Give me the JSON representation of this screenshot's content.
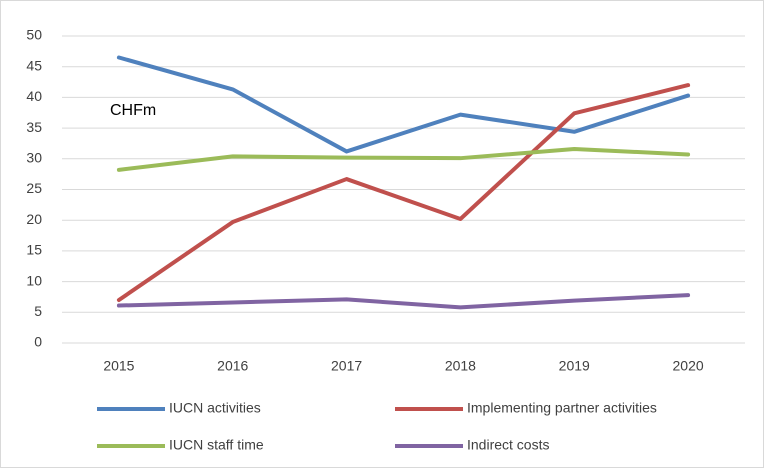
{
  "chart_data": {
    "type": "line",
    "annotation": "CHFm",
    "categories": [
      "2015",
      "2016",
      "2017",
      "2018",
      "2019",
      "2020"
    ],
    "series": [
      {
        "name": "IUCN activities",
        "color": "#4f81bd",
        "values": [
          46.5,
          41.3,
          31.2,
          37.2,
          34.4,
          40.3
        ]
      },
      {
        "name": "Implementing partner activities",
        "color": "#c0504d",
        "values": [
          7.0,
          19.7,
          26.7,
          20.2,
          37.4,
          42.0
        ]
      },
      {
        "name": "IUCN staff time",
        "color": "#9bbb59",
        "values": [
          28.2,
          30.4,
          30.2,
          30.1,
          31.6,
          30.7
        ]
      },
      {
        "name": "Indirect costs",
        "color": "#8064a2",
        "values": [
          6.1,
          6.6,
          7.1,
          5.8,
          6.9,
          7.8
        ]
      }
    ],
    "ylim": [
      0,
      50
    ],
    "yticks": [
      0,
      5,
      10,
      15,
      20,
      25,
      30,
      35,
      40,
      45,
      50
    ],
    "grid": true
  }
}
